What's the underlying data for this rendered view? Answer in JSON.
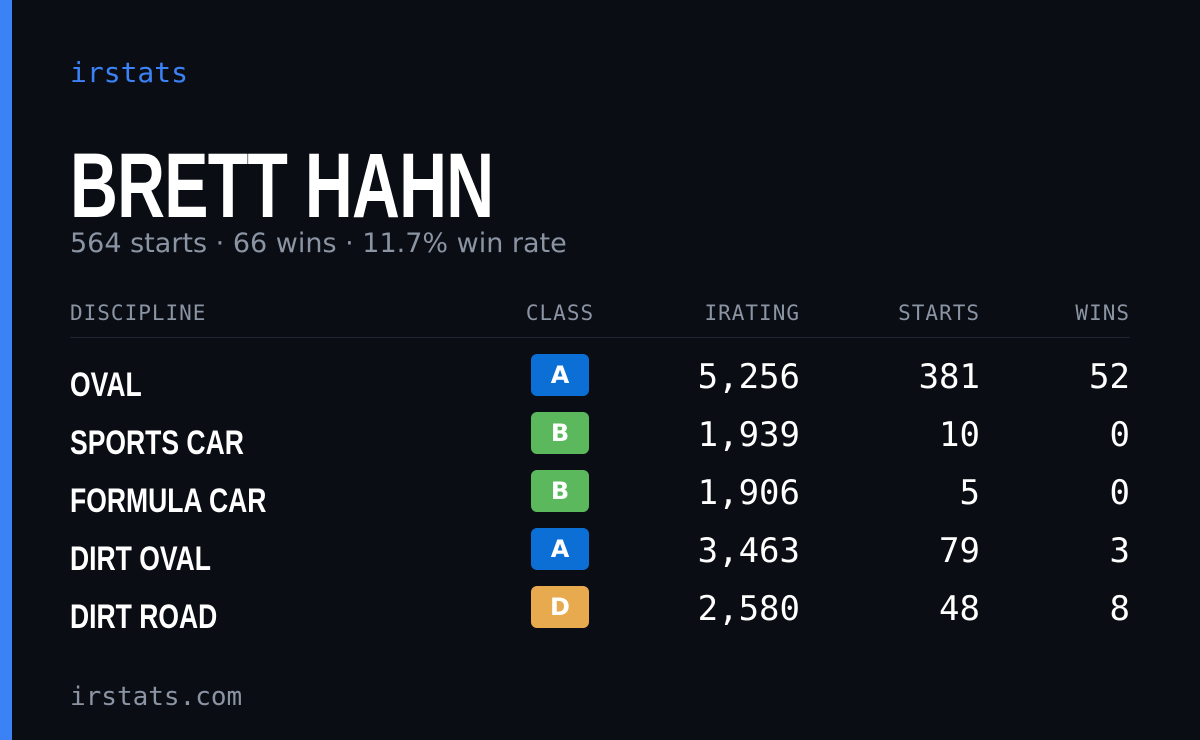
{
  "brand": "irstats",
  "driver": {
    "name": "BRETT HAHN",
    "summary": "564 starts · 66 wins · 11.7% win rate"
  },
  "table": {
    "headers": [
      "DISCIPLINE",
      "CLASS",
      "IRATING",
      "STARTS",
      "WINS"
    ],
    "rows": [
      {
        "discipline": "OVAL",
        "class": "A",
        "class_color": "#0b6fd6",
        "irating": "5,256",
        "starts": "381",
        "wins": "52"
      },
      {
        "discipline": "SPORTS CAR",
        "class": "B",
        "class_color": "#5cb85c",
        "irating": "1,939",
        "starts": "10",
        "wins": "0"
      },
      {
        "discipline": "FORMULA CAR",
        "class": "B",
        "class_color": "#5cb85c",
        "irating": "1,906",
        "starts": "5",
        "wins": "0"
      },
      {
        "discipline": "DIRT OVAL",
        "class": "A",
        "class_color": "#0b6fd6",
        "irating": "3,463",
        "starts": "79",
        "wins": "3"
      },
      {
        "discipline": "DIRT ROAD",
        "class": "D",
        "class_color": "#e8aa4e",
        "irating": "2,580",
        "starts": "48",
        "wins": "8"
      }
    ]
  },
  "footer": "irstats.com"
}
